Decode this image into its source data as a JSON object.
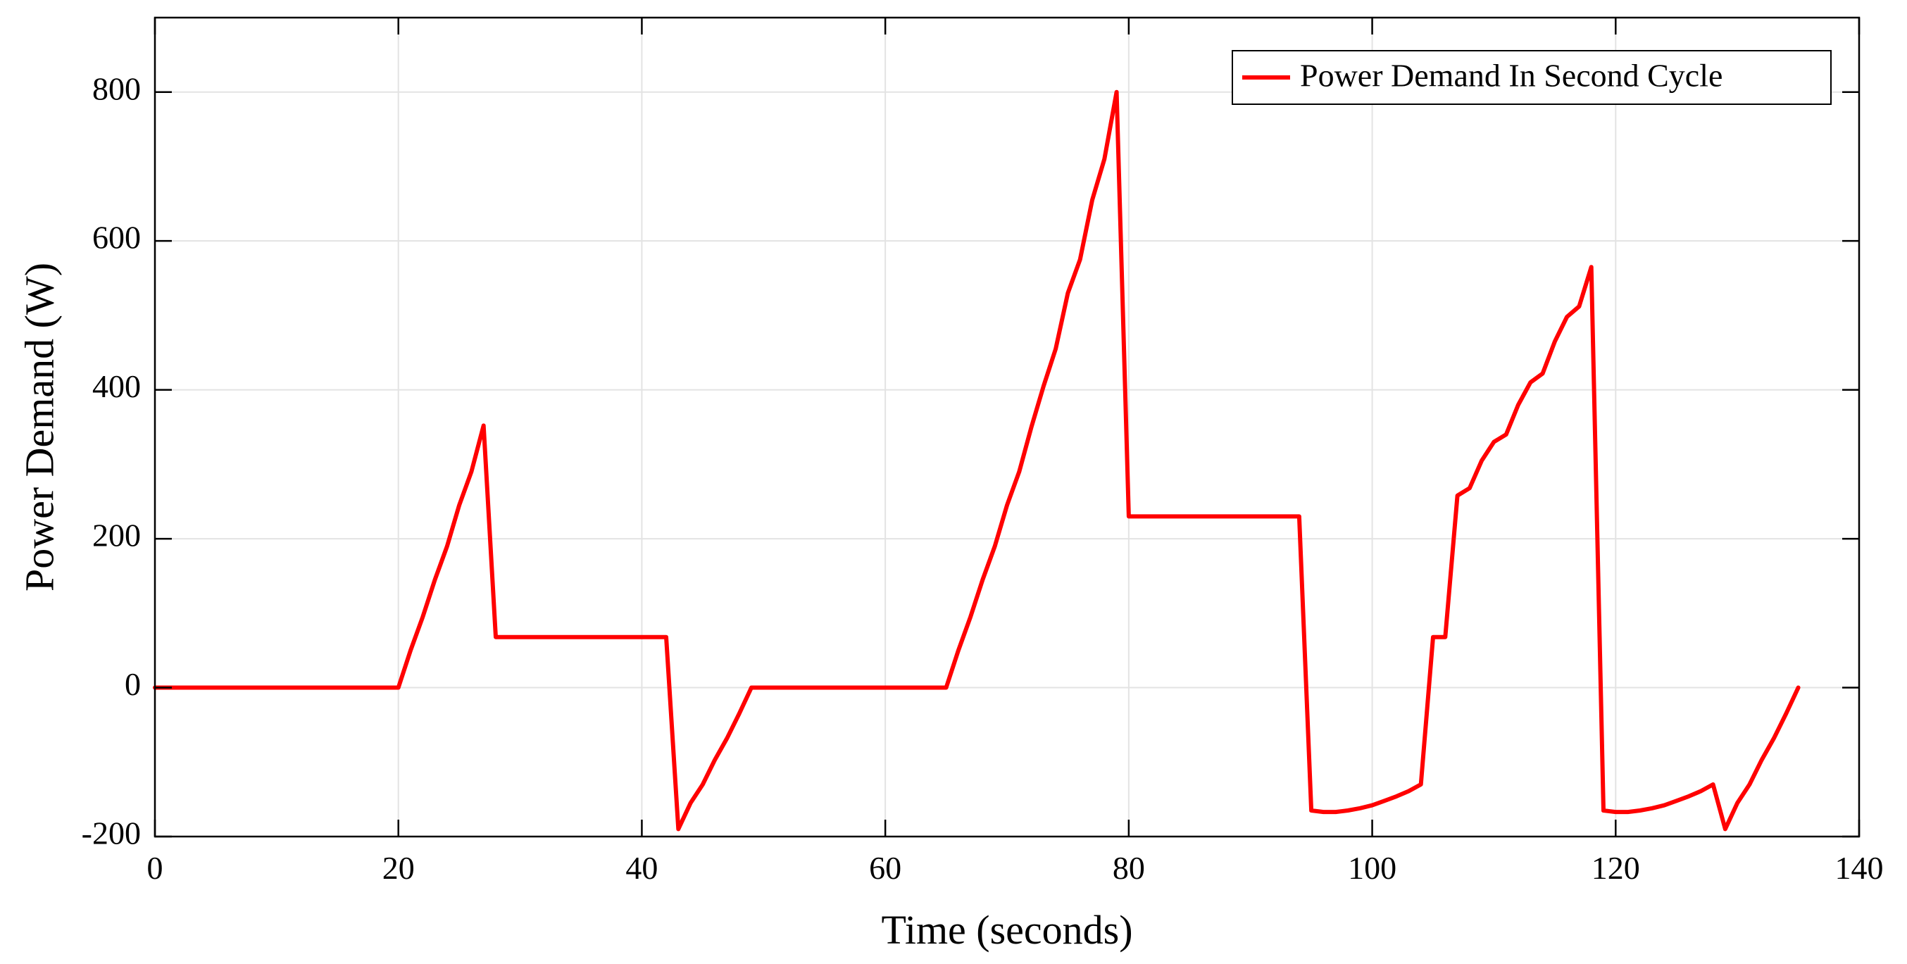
{
  "chart_data": {
    "type": "line",
    "title": "",
    "xlabel": "Time (seconds)",
    "ylabel": "Power Demand (W)",
    "xlim": [
      0,
      140
    ],
    "ylim": [
      -200,
      900
    ],
    "xticks": [
      0,
      20,
      40,
      60,
      80,
      100,
      120,
      140
    ],
    "yticks": [
      -200,
      0,
      200,
      400,
      600,
      800
    ],
    "xtick_labels": [
      "0",
      "20",
      "40",
      "60",
      "80",
      "100",
      "120",
      "140"
    ],
    "ytick_labels": [
      "-200",
      "0",
      "200",
      "400",
      "600",
      "800"
    ],
    "grid": true,
    "legend_position": "top-right",
    "series": [
      {
        "name": "Power Demand In Second Cycle",
        "color": "#ff0000",
        "x": [
          0,
          20,
          21,
          22,
          23,
          24,
          25,
          26,
          27,
          28,
          42,
          43,
          44,
          45,
          46,
          47,
          48,
          49,
          65,
          66,
          67,
          68,
          69,
          70,
          71,
          72,
          73,
          74,
          75,
          76,
          77,
          78,
          79,
          80,
          94,
          95,
          96,
          97,
          98,
          99,
          100,
          101,
          102,
          103,
          104,
          105,
          106,
          107,
          108,
          109,
          110,
          111,
          112,
          113,
          114,
          115,
          116,
          117,
          118,
          119,
          120,
          121,
          122,
          123,
          124,
          125,
          126,
          127,
          128,
          129,
          130,
          131,
          132,
          133,
          134,
          135
        ],
        "y": [
          0,
          0,
          50,
          95,
          145,
          190,
          245,
          290,
          352,
          68,
          68,
          -190,
          -155,
          -130,
          -97,
          -68,
          -35,
          0,
          0,
          50,
          95,
          145,
          190,
          245,
          290,
          350,
          405,
          455,
          530,
          575,
          655,
          710,
          800,
          230,
          230,
          -165,
          -167,
          -167,
          -165,
          -162,
          -158,
          -152,
          -146,
          -139,
          -130,
          68,
          68,
          258,
          268,
          305,
          330,
          340,
          380,
          410,
          422,
          465,
          498,
          512,
          565,
          -165,
          -167,
          -167,
          -165,
          -162,
          -158,
          -152,
          -146,
          -139,
          -130,
          -190,
          -155,
          -130,
          -97,
          -68,
          -35,
          0
        ]
      }
    ]
  }
}
